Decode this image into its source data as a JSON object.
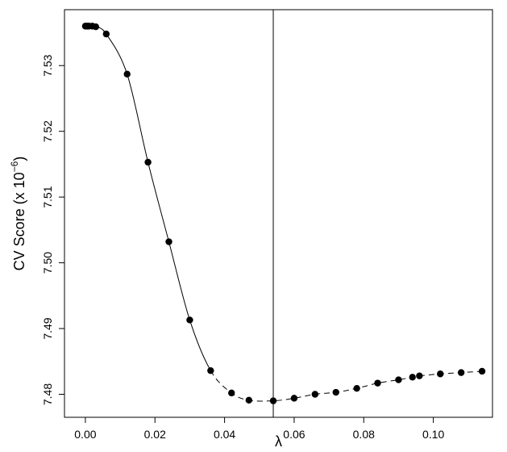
{
  "chart_data": {
    "type": "scatter",
    "xlabel": "λ",
    "ylabel": "CV Score (x 10",
    "ylabel_exponent": "−6",
    "ylabel_close": ")",
    "xlim": [
      -0.006,
      0.117
    ],
    "ylim": [
      7.4765,
      7.5385
    ],
    "x_ticks": [
      0.0,
      0.02,
      0.04,
      0.06,
      0.08,
      0.1
    ],
    "x_tick_labels": [
      "0.00",
      "0.02",
      "0.04",
      "0.06",
      "0.08",
      "0.10"
    ],
    "y_ticks": [
      7.48,
      7.49,
      7.5,
      7.51,
      7.52,
      7.53
    ],
    "y_tick_labels": [
      "7.48",
      "7.49",
      "7.50",
      "7.51",
      "7.52",
      "7.53"
    ],
    "vertical_line_x": 0.054,
    "series": [
      {
        "points": [
          [
            0.0,
            7.536
          ],
          [
            0.0005,
            7.536
          ],
          [
            0.001,
            7.536
          ],
          [
            0.002,
            7.536
          ],
          [
            0.003,
            7.5359
          ],
          [
            0.006,
            7.5348
          ],
          [
            0.012,
            7.5287
          ],
          [
            0.018,
            7.5153
          ],
          [
            0.024,
            7.5032
          ],
          [
            0.03,
            7.4913
          ],
          [
            0.036,
            7.4836
          ],
          [
            0.042,
            7.4802
          ],
          [
            0.047,
            7.4791
          ],
          [
            0.054,
            7.479
          ],
          [
            0.06,
            7.4794
          ],
          [
            0.066,
            7.48
          ],
          [
            0.072,
            7.4803
          ],
          [
            0.078,
            7.4809
          ],
          [
            0.084,
            7.4817
          ],
          [
            0.09,
            7.4822
          ],
          [
            0.094,
            7.4826
          ],
          [
            0.096,
            7.4828
          ],
          [
            0.102,
            7.4831
          ],
          [
            0.108,
            7.4833
          ],
          [
            0.114,
            7.4835
          ]
        ],
        "solid_until_x": 0.036
      }
    ],
    "grid": false,
    "colors": {
      "line": "#000000",
      "points": "#000000",
      "background": "#ffffff"
    }
  }
}
